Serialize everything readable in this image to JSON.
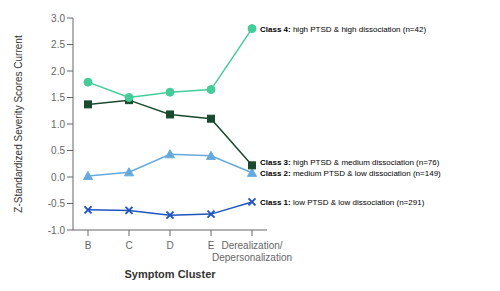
{
  "chart_data": {
    "type": "line",
    "categories": [
      "B",
      "C",
      "D",
      "E",
      "Derealization/\nDepersonalization"
    ],
    "xlabel": "Symptom Cluster",
    "ylabel": "Z-Standardized Severity Scores Current",
    "ylim": [
      -1.0,
      3.0
    ],
    "yticks": [
      {
        "value": -1.0,
        "label": "-1.0"
      },
      -0.5,
      {
        "value": 0.0,
        "label": "0.0"
      },
      0.5,
      {
        "value": 1.0,
        "label": "1.0"
      },
      1.5,
      {
        "value": 2.0,
        "label": "2.0"
      },
      2.5,
      {
        "value": 3.0,
        "label": "3.0"
      }
    ],
    "grid": false,
    "series": [
      {
        "name": "Class 1: low PTSD & low dissociation (n=291)",
        "color": "#2255bb",
        "marker": "x",
        "values": [
          -0.62,
          -0.63,
          -0.72,
          -0.7,
          -0.47
        ]
      },
      {
        "name": "Class 2: medium PTSD & low dissociation (n=149)",
        "color": "#66aadd",
        "marker": "triangle",
        "values": [
          0.02,
          0.09,
          0.43,
          0.4,
          0.08
        ]
      },
      {
        "name": "Class 3: high PTSD & medium dissociation (n=76)",
        "color": "#1a4a2e",
        "marker": "square",
        "values": [
          1.37,
          1.45,
          1.18,
          1.1,
          0.22
        ]
      },
      {
        "name": "Class 4: high PTSD & high dissociation (n=42)",
        "color": "#44cc99",
        "marker": "circle",
        "values": [
          1.79,
          1.5,
          1.6,
          1.65,
          2.8
        ]
      }
    ]
  }
}
